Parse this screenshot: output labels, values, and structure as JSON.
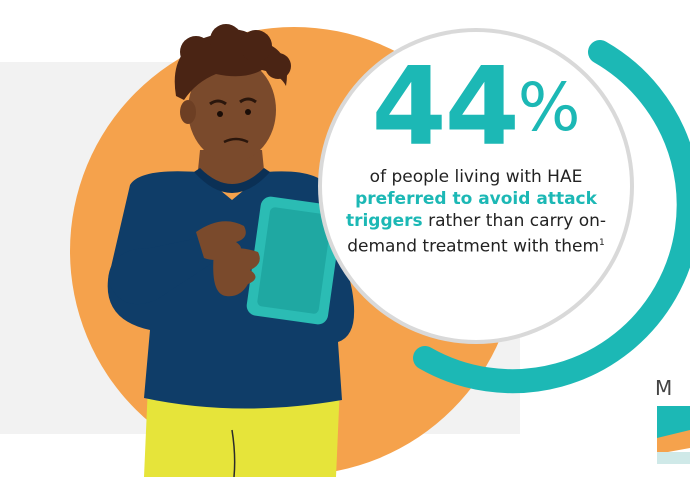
{
  "stat": {
    "number": "44",
    "percent_sign": "%",
    "line1": "of people living with HAE",
    "highlight": "preferred to avoid attack triggers",
    "line2": " rather than carry on-demand treatment with them",
    "reference": "1"
  },
  "corner": {
    "letter": "M"
  },
  "colors": {
    "accent": "#1cb8b5",
    "orange": "#f5a24c",
    "navy": "#0f3d68"
  }
}
